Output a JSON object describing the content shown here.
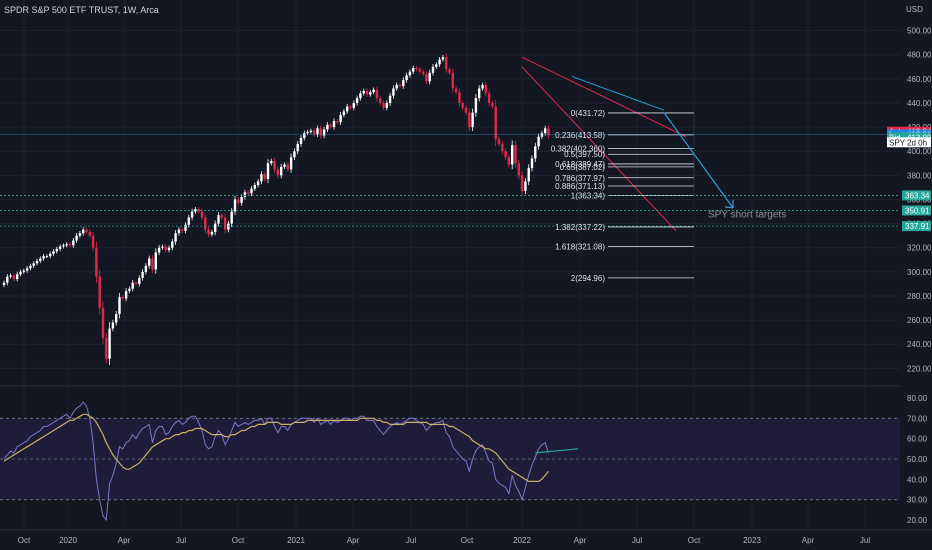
{
  "title": "SPDR S&P 500 ETF TRUST, 1W, Arca",
  "currency": "USD",
  "chart_data": {
    "type": "candlestick",
    "symbol": "SPY",
    "interval": "1W",
    "exchange": "Arca",
    "price_axis": {
      "min": 210,
      "max": 505,
      "ticks": [
        220,
        240,
        260,
        280,
        300,
        320,
        340,
        360,
        380,
        400,
        420,
        440,
        460,
        480,
        500
      ]
    },
    "time_axis_labels": [
      "Oct",
      "2020",
      "Apr",
      "Jul",
      "Oct",
      "2021",
      "Apr",
      "Jul",
      "Oct",
      "2022",
      "Apr",
      "Jul",
      "Oct",
      "2023",
      "Apr",
      "Jul"
    ],
    "colors": {
      "up": "#ffffff",
      "down": "#e0294a",
      "background": "#131722",
      "rsi_line": "#7e78c9",
      "rsi_ma": "#c9b06a",
      "fib": "#e0e3eb",
      "channel": "#e0294a",
      "arrow": "#2a9fd6",
      "rsi_trend": "#26a69a"
    },
    "weekly_closes": [
      291,
      296,
      297,
      294,
      298,
      300,
      301,
      303,
      305,
      307,
      309,
      311,
      313,
      313,
      315,
      317,
      319,
      321,
      322,
      323,
      322,
      326,
      330,
      332,
      335,
      333,
      330,
      320,
      296,
      270,
      245,
      228,
      253,
      258,
      265,
      279,
      278,
      284,
      286,
      291,
      290,
      295,
      300,
      305,
      311,
      302,
      316,
      320,
      321,
      318,
      320,
      325,
      332,
      335,
      334,
      339,
      345,
      350,
      352,
      350,
      345,
      335,
      331,
      333,
      340,
      347,
      345,
      335,
      340,
      350,
      360,
      357,
      362,
      366,
      365,
      369,
      372,
      375,
      381,
      377,
      390,
      392,
      385,
      380,
      387,
      389,
      385,
      395,
      400,
      406,
      411,
      415,
      416,
      417,
      414,
      419,
      413,
      418,
      422,
      420,
      425,
      424,
      430,
      433,
      437,
      436,
      440,
      444,
      448,
      450,
      447,
      449,
      451,
      444,
      440,
      436,
      440,
      446,
      452,
      455,
      454,
      459,
      463,
      466,
      469,
      468,
      466,
      464,
      458,
      465,
      470,
      472,
      476,
      478,
      468,
      465,
      452,
      449,
      440,
      436,
      432,
      420,
      432,
      444,
      452,
      455,
      448,
      440,
      437,
      410,
      406,
      400,
      395,
      389,
      405,
      390,
      380,
      367,
      375,
      386,
      394,
      404,
      412,
      415,
      419,
      413
    ]
  },
  "fib_levels": [
    {
      "label": "0(431.72)",
      "price": 431.72
    },
    {
      "label": "0.236(413.58)",
      "price": 413.58
    },
    {
      "label": "0.382(402.360)",
      "price": 402.36
    },
    {
      "label": "0.5(397.50)",
      "price": 397.5
    },
    {
      "label": "0.618(389.47)",
      "price": 389.47
    },
    {
      "label": "0.65(387.02)",
      "price": 387.02
    },
    {
      "label": "0.786(377.97)",
      "price": 377.97
    },
    {
      "label": "0.886(371.13)",
      "price": 371.13
    },
    {
      "label": "1(363.34)",
      "price": 363.34
    },
    {
      "label": "1.382(337.22)",
      "price": 337.22
    },
    {
      "label": "1.618(321.08)",
      "price": 321.08
    },
    {
      "label": "2(294.96)",
      "price": 294.96
    }
  ],
  "annotation": "SPY short targets",
  "target_levels": [
    363.34,
    350.91,
    337.91
  ],
  "price_badges": [
    {
      "label": "Ask",
      "value": "413.84",
      "price": 416.2,
      "color": "#e0294a"
    },
    {
      "label": "Last",
      "value": "413.81",
      "price": 413.81,
      "color": "#1e88e5"
    },
    {
      "label": "Bid",
      "value": "413.80",
      "price": 411.4,
      "color": "#26a69a"
    }
  ],
  "spy_badge": {
    "label": "SPY",
    "value": "2d 0h"
  },
  "target_badges": [
    {
      "value": "363.34",
      "price": 363.34
    },
    {
      "value": "350.91",
      "price": 350.91
    },
    {
      "value": "337.91",
      "price": 337.91
    }
  ],
  "rsi": {
    "ticks": [
      20,
      30,
      40,
      50,
      60,
      70,
      80
    ],
    "labels": [
      "20.00",
      "30.00",
      "40.00",
      "50.00",
      "60.00",
      "70.00",
      "80.00"
    ],
    "levels": {
      "upper": 70,
      "middle": 50,
      "lower": 30
    },
    "values": [
      50,
      52,
      54,
      53,
      56,
      57,
      58,
      59,
      61,
      62,
      63,
      64,
      66,
      66,
      67,
      68,
      69,
      70,
      71,
      72,
      70,
      73,
      75,
      76,
      78,
      76,
      70,
      58,
      40,
      30,
      22,
      20,
      38,
      42,
      48,
      56,
      55,
      58,
      59,
      62,
      60,
      63,
      65,
      66,
      67,
      58,
      64,
      66,
      66,
      62,
      63,
      66,
      68,
      69,
      67,
      68,
      70,
      71,
      71,
      68,
      64,
      57,
      55,
      56,
      61,
      64,
      62,
      57,
      60,
      64,
      68,
      66,
      67,
      68,
      67,
      68,
      69,
      69,
      70,
      67,
      70,
      70,
      66,
      63,
      66,
      66,
      64,
      67,
      68,
      69,
      70,
      70,
      70,
      70,
      68,
      70,
      67,
      68,
      69,
      67,
      69,
      68,
      69,
      70,
      70,
      69,
      70,
      70,
      71,
      71,
      69,
      69,
      69,
      66,
      64,
      62,
      64,
      66,
      67,
      68,
      67,
      68,
      69,
      70,
      70,
      69,
      68,
      67,
      64,
      66,
      67,
      68,
      68,
      69,
      63,
      61,
      56,
      54,
      52,
      50,
      49,
      44,
      50,
      54,
      56,
      57,
      53,
      49,
      48,
      40,
      38,
      37,
      36,
      33,
      42,
      37,
      34,
      30,
      36,
      42,
      47,
      51,
      55,
      57,
      58,
      53
    ],
    "ma_values": [
      49,
      50,
      51,
      52,
      53,
      54,
      55,
      56,
      57,
      58,
      59,
      60,
      61,
      62,
      63,
      64,
      65,
      66,
      67,
      68,
      69,
      69,
      70,
      71,
      72,
      72,
      71,
      70,
      68,
      65,
      62,
      58,
      55,
      52,
      50,
      48,
      46,
      45,
      45,
      46,
      47,
      48,
      50,
      52,
      54,
      56,
      57,
      58,
      59,
      60,
      60,
      61,
      62,
      62,
      63,
      63,
      64,
      64,
      65,
      65,
      65,
      64,
      63,
      62,
      62,
      62,
      62,
      61,
      61,
      62,
      62,
      63,
      64,
      64,
      65,
      66,
      66,
      67,
      67,
      67,
      68,
      68,
      68,
      68,
      67,
      67,
      67,
      67,
      68,
      68,
      68,
      68,
      69,
      69,
      69,
      69,
      69,
      69,
      69,
      69,
      69,
      69,
      69,
      69,
      69,
      69,
      69,
      69,
      70,
      70,
      70,
      70,
      70,
      69,
      69,
      68,
      68,
      67,
      67,
      67,
      67,
      67,
      68,
      68,
      68,
      68,
      68,
      68,
      68,
      67,
      67,
      67,
      67,
      67,
      67,
      66,
      66,
      65,
      64,
      63,
      62,
      61,
      59,
      58,
      57,
      56,
      55,
      55,
      54,
      53,
      51,
      49,
      47,
      45,
      44,
      43,
      42,
      41,
      40,
      39,
      39,
      39,
      39,
      40,
      42,
      44
    ]
  }
}
